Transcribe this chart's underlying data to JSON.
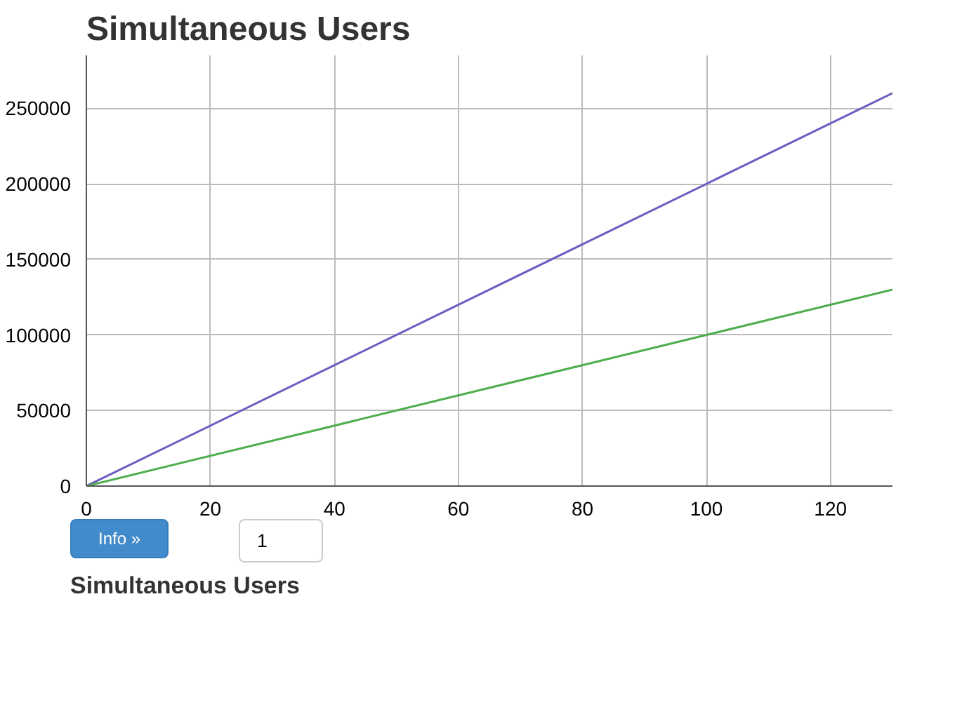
{
  "chart_data": {
    "type": "line",
    "title": "Simultaneous Users",
    "x": [
      0,
      130
    ],
    "series": [
      {
        "color": "#6a5fc1",
        "values": [
          0,
          260000
        ]
      },
      {
        "color": "#4cae4c",
        "values": [
          0,
          130000
        ]
      }
    ],
    "xlim": [
      0,
      130
    ],
    "ylim": [
      0,
      285000
    ],
    "xticks": [
      0,
      20,
      40,
      60,
      80,
      100,
      120
    ],
    "yticks": [
      0,
      50000,
      100000,
      150000,
      200000,
      250000
    ],
    "grid": true,
    "annotations": [
      "1",
      "Info »",
      "Simultaneous Users"
    ]
  }
}
